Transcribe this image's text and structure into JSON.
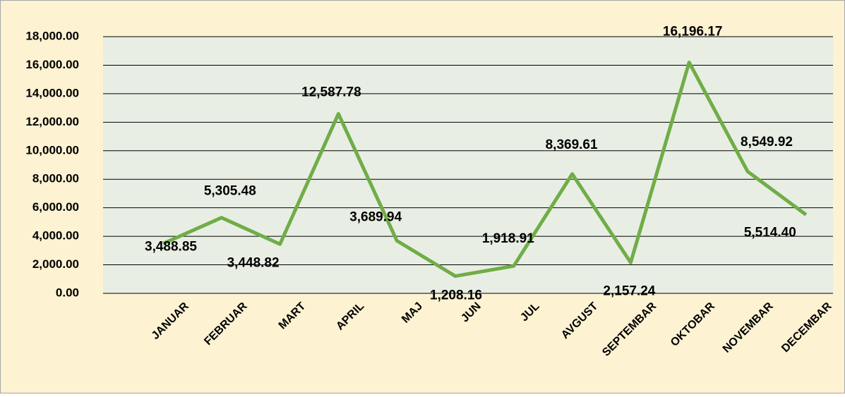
{
  "chart_data": {
    "type": "line",
    "categories": [
      "JANUAR",
      "FEBRUAR",
      "MART",
      "APRIL",
      "MAJ",
      "JUN",
      "JUL",
      "AVGUST",
      "SEPTEMBAR",
      "OKTOBAR",
      "NOVEMBAR",
      "DECEMBAR"
    ],
    "series": [
      {
        "color": "#70ad47",
        "values": [
          3488.85,
          5305.48,
          3448.82,
          12587.78,
          3689.94,
          1208.16,
          1918.91,
          8369.61,
          2157.24,
          16196.17,
          8549.92,
          5514.4
        ],
        "value_labels": [
          "3,488.85",
          "5,305.48",
          "3,448.82",
          "12,587.78",
          "3,689.94",
          "1,208.16",
          "1,918.91",
          "8,369.61",
          "2,157.24",
          "16,196.17",
          "8,549.92",
          "5,514.40"
        ]
      }
    ],
    "ylim": [
      0,
      18000
    ],
    "yticks": [
      {
        "value": 0,
        "label": "0.00"
      },
      {
        "value": 2000,
        "label": "2,000.00"
      },
      {
        "value": 4000,
        "label": "4,000.00"
      },
      {
        "value": 6000,
        "label": "6,000.00"
      },
      {
        "value": 8000,
        "label": "8,000.00"
      },
      {
        "value": 10000,
        "label": "10,000.00"
      },
      {
        "value": 12000,
        "label": "12,000.00"
      },
      {
        "value": 14000,
        "label": "14,000.00"
      },
      {
        "value": 16000,
        "label": "16,000.00"
      },
      {
        "value": 18000,
        "label": "18,000.00"
      }
    ],
    "grid": true
  }
}
